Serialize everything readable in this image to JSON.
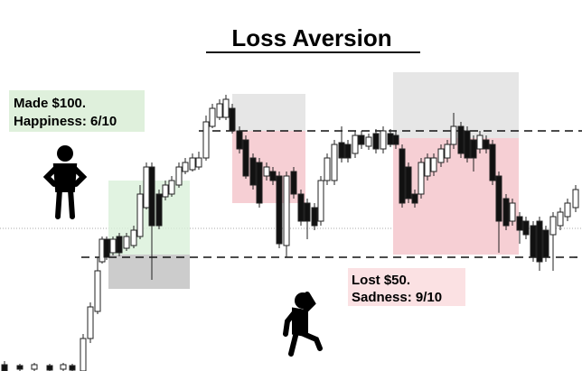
{
  "header": {
    "title": "Loss Aversion"
  },
  "gain_note": {
    "lines": [
      "Made $100.",
      "Happiness: 6/10"
    ]
  },
  "loss_note": {
    "lines": [
      "Lost $50.",
      "Sadness: 9/10"
    ]
  }
}
